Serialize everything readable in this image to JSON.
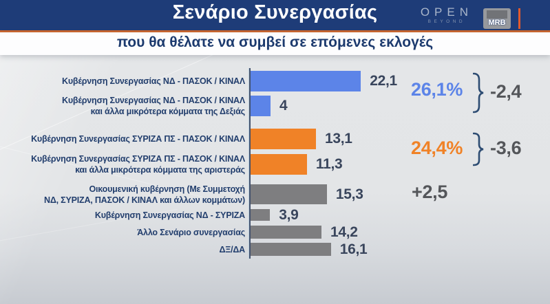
{
  "header": {
    "title": "Σενάριο Συνεργασίας",
    "open_logo": {
      "text": "OPEN",
      "sub": "BEYOND"
    },
    "mrb_logo": {
      "text": "MRB"
    }
  },
  "subtitle": "που θα θέλατε να συμβεί σε επόμενες εκλογές",
  "colors": {
    "header_bg": "#1e3c78",
    "orange_rule": "#c9662f",
    "blue_bar": "#5c84e8",
    "orange_bar": "#f08227",
    "gray_bar": "#7e7e80",
    "label_navy": "#223e6d",
    "value_slate": "#39455c",
    "delta_gray": "#54565a",
    "background": "#e3e5e7"
  },
  "chart_data": {
    "type": "bar",
    "orientation": "horizontal",
    "title": "Σενάριο Συνεργασίας",
    "subtitle": "που θα θέλατε να συμβεί σε επόμενες εκλογές",
    "unit": "%",
    "xlim": [
      0,
      25
    ],
    "grid": false,
    "categories": [
      [
        "Κυβέρνηση Συνεργασίας ΝΔ - ΠΑΣΟΚ / ΚΙΝΑΛ"
      ],
      [
        "Κυβέρνηση Συνεργασίας ΝΔ - ΠΑΣΟΚ / ΚΙΝΑΛ",
        "και άλλα μικρότερα κόμματα της Δεξιάς"
      ],
      [
        "Κυβέρνηση Συνεργασίας ΣΥΡΙΖΑ ΠΣ - ΠΑΣΟΚ / ΚΙΝΑΛ"
      ],
      [
        "Κυβέρνηση Συνεργασίας ΣΥΡΙΖΑ ΠΣ - ΠΑΣΟΚ / ΚΙΝΑΛ",
        "και άλλα μικρότερα κόμματα της αριστεράς"
      ],
      [
        "Οικουμενική κυβέρνηση (Με Συμμετοχή",
        "ΝΔ, ΣΥΡΙΖΑ, ΠΑΣΟΚ / ΚΙΝΑΛ και άλλων κομμάτων)"
      ],
      [
        "Κυβέρνηση Συνεργασίας ΝΔ - ΣΥΡΙΖΑ"
      ],
      [
        "Άλλο Σενάριο συνεργασίας"
      ],
      [
        "ΔΞ/ΔΑ"
      ]
    ],
    "values": [
      22.1,
      4,
      13.1,
      11.3,
      15.3,
      3.9,
      14.2,
      16.1
    ],
    "value_labels": [
      "22,1",
      "4",
      "13,1",
      "11,3",
      "15,3",
      "3,9",
      "14,2",
      "16,1"
    ],
    "bar_colors": [
      "#5c84e8",
      "#5c84e8",
      "#f08227",
      "#f08227",
      "#7e7e80",
      "#7e7e80",
      "#7e7e80",
      "#7e7e80"
    ],
    "groups": [
      {
        "total": "26,1%",
        "delta": "-2,4",
        "color": "#5c84e8",
        "rows": [
          0,
          1
        ]
      },
      {
        "total": "24,4%",
        "delta": "-3,6",
        "color": "#f08227",
        "rows": [
          2,
          3
        ]
      },
      {
        "total": "",
        "delta": "+2,5",
        "color": "#54565a",
        "rows": [
          4
        ]
      }
    ]
  }
}
